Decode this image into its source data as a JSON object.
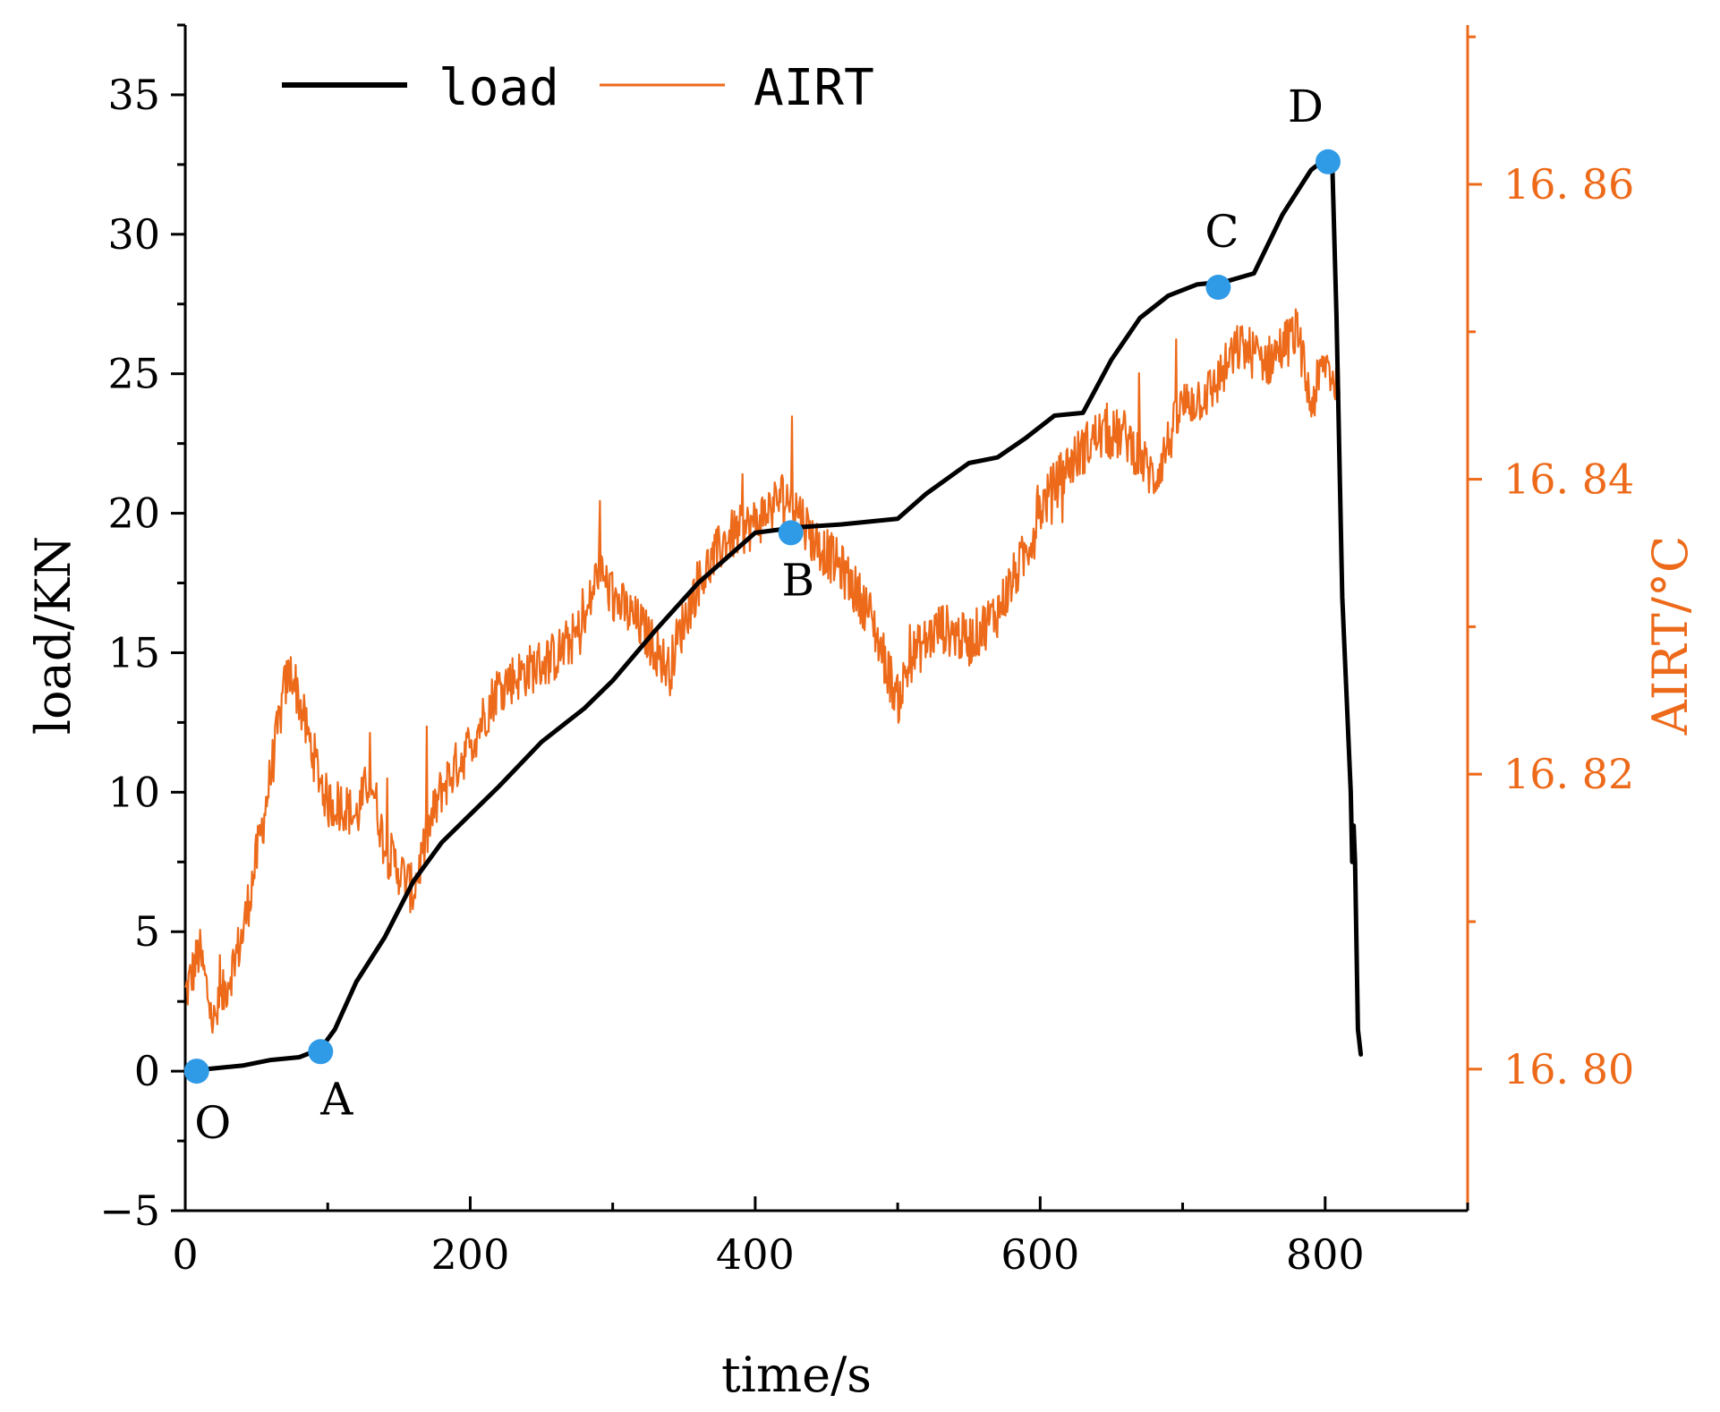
{
  "chart_data": {
    "type": "line",
    "title": "",
    "xlabel": "time/s",
    "ylabel_left": "load/KN",
    "ylabel_right": "AIRT/°C",
    "xlim": [
      0,
      900
    ],
    "ylim_left": [
      -5,
      37.5
    ],
    "ylim_right": [
      16.7904,
      16.8708
    ],
    "x_ticks": [
      0,
      200,
      400,
      600,
      800
    ],
    "y_left_ticks": [
      -5,
      0,
      5,
      10,
      15,
      20,
      25,
      30,
      35
    ],
    "y_right_ticks": [
      16.8,
      16.82,
      16.84,
      16.86
    ],
    "x_tick_labels": [
      "0",
      "200",
      "400",
      "600",
      "800"
    ],
    "y_left_tick_labels": [
      "−5",
      "0",
      "5",
      "10",
      "15",
      "20",
      "25",
      "30",
      "35"
    ],
    "y_right_tick_labels": [
      "16. 80",
      "16. 82",
      "16. 84",
      "16. 86"
    ],
    "legend": {
      "position": "top-left",
      "entries": [
        {
          "label": "load",
          "series": "load"
        },
        {
          "label": "AIRT",
          "series": "AIRT"
        }
      ]
    },
    "series": [
      {
        "name": "load",
        "axis": "left",
        "color": "#000000",
        "x": [
          0,
          20,
          40,
          60,
          80,
          95,
          105,
          120,
          140,
          160,
          180,
          200,
          220,
          250,
          280,
          300,
          330,
          360,
          400,
          430,
          460,
          500,
          520,
          550,
          570,
          590,
          610,
          630,
          650,
          670,
          690,
          710,
          730,
          750,
          770,
          790,
          800,
          805,
          808,
          812,
          818,
          819,
          820,
          821,
          823,
          825
        ],
        "values": [
          0,
          0.1,
          0.2,
          0.4,
          0.5,
          0.8,
          1.5,
          3.2,
          4.8,
          6.8,
          8.2,
          9.2,
          10.2,
          11.8,
          13.0,
          14.0,
          15.8,
          17.5,
          19.3,
          19.5,
          19.6,
          19.8,
          20.7,
          21.8,
          22.0,
          22.7,
          23.5,
          23.6,
          25.5,
          27.0,
          27.8,
          28.2,
          28.3,
          28.6,
          30.7,
          32.3,
          32.7,
          32.6,
          27.0,
          17.0,
          10.0,
          7.5,
          8.8,
          7.5,
          1.5,
          0.6
        ]
      },
      {
        "name": "AIRT",
        "axis": "right",
        "color": "#ed6a1a",
        "x": [
          0,
          10,
          20,
          30,
          40,
          55,
          70,
          75,
          85,
          100,
          110,
          120,
          130,
          140,
          160,
          170,
          180,
          200,
          220,
          240,
          260,
          280,
          290,
          300,
          320,
          340,
          345,
          360,
          380,
          400,
          420,
          430,
          440,
          460,
          480,
          500,
          510,
          530,
          550,
          570,
          590,
          600,
          620,
          640,
          660,
          680,
          700,
          720,
          740,
          760,
          770,
          780,
          790,
          800,
          810
        ],
        "values": [
          16.805,
          16.808,
          16.803,
          16.806,
          16.809,
          16.817,
          16.826,
          16.827,
          16.823,
          16.818,
          16.818,
          16.817,
          16.82,
          16.815,
          16.812,
          16.816,
          16.819,
          16.822,
          16.826,
          16.827,
          16.828,
          16.83,
          16.834,
          16.832,
          16.83,
          16.827,
          16.829,
          16.833,
          16.836,
          16.837,
          16.839,
          16.838,
          16.836,
          16.834,
          16.831,
          16.825,
          16.828,
          16.83,
          16.829,
          16.831,
          16.835,
          16.838,
          16.841,
          16.843,
          16.843,
          16.84,
          16.845,
          16.846,
          16.849,
          16.848,
          16.849,
          16.85,
          16.845,
          16.848,
          16.846
        ]
      }
    ],
    "annotated_points": [
      {
        "label": "O",
        "x": 8,
        "y": 0.0
      },
      {
        "label": "A",
        "x": 95,
        "y": 0.7
      },
      {
        "label": "B",
        "x": 425,
        "y": 19.3
      },
      {
        "label": "C",
        "x": 725,
        "y": 28.1
      },
      {
        "label": "D",
        "x": 802,
        "y": 32.6
      }
    ],
    "colors": {
      "load": "#000000",
      "airt": "#ed6a1a",
      "points": "#2f9ae6",
      "axis": "#000000",
      "right_axis": "#ed6a1a"
    }
  }
}
